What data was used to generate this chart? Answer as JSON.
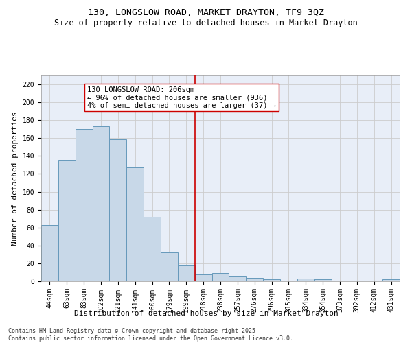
{
  "title": "130, LONGSLOW ROAD, MARKET DRAYTON, TF9 3QZ",
  "subtitle": "Size of property relative to detached houses in Market Drayton",
  "xlabel": "Distribution of detached houses by size in Market Drayton",
  "ylabel": "Number of detached properties",
  "categories": [
    "44sqm",
    "63sqm",
    "83sqm",
    "102sqm",
    "121sqm",
    "141sqm",
    "160sqm",
    "179sqm",
    "199sqm",
    "218sqm",
    "238sqm",
    "257sqm",
    "276sqm",
    "296sqm",
    "315sqm",
    "334sqm",
    "354sqm",
    "373sqm",
    "392sqm",
    "412sqm",
    "431sqm"
  ],
  "bar_heights": [
    63,
    136,
    170,
    173,
    159,
    127,
    72,
    32,
    18,
    8,
    9,
    5,
    4,
    2,
    0,
    3,
    2,
    0,
    0,
    0,
    2
  ],
  "bar_color": "#c8d8e8",
  "bar_edge_color": "#6699bb",
  "vline_x": 8.5,
  "vline_color": "#cc0000",
  "annotation_text": "130 LONGSLOW ROAD: 206sqm\n← 96% of detached houses are smaller (936)\n4% of semi-detached houses are larger (37) →",
  "annotation_box_color": "#ffffff",
  "annotation_box_edge_color": "#cc0000",
  "ylim": [
    0,
    230
  ],
  "yticks": [
    0,
    20,
    40,
    60,
    80,
    100,
    120,
    140,
    160,
    180,
    200,
    220
  ],
  "grid_color": "#cccccc",
  "background_color": "#e8eef8",
  "footer": "Contains HM Land Registry data © Crown copyright and database right 2025.\nContains public sector information licensed under the Open Government Licence v3.0.",
  "title_fontsize": 9.5,
  "subtitle_fontsize": 8.5,
  "axis_label_fontsize": 8,
  "tick_fontsize": 7,
  "annotation_fontsize": 7.5,
  "footer_fontsize": 6
}
